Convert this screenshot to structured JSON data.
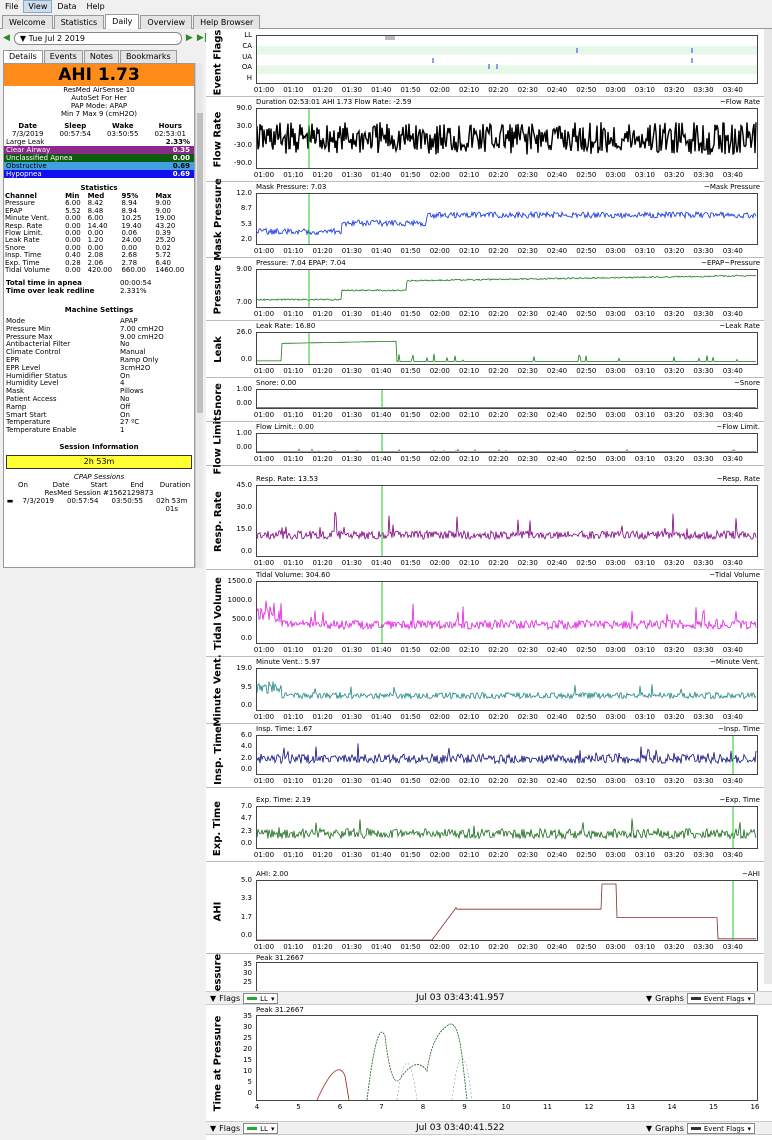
{
  "menu": [
    "File",
    "View",
    "Data",
    "Help"
  ],
  "tabs": [
    "Welcome",
    "Statistics",
    "Daily",
    "Overview",
    "Help Browser"
  ],
  "date": "Tue Jul 2 2019",
  "subtabs": [
    "Details",
    "Events",
    "Notes",
    "Bookmarks"
  ],
  "ahi": "AHI 1.73",
  "machine_lines": [
    "ResMed AirSense 10",
    "AutoSet For Her",
    "PAP Mode: APAP",
    "Min 7 Max 9 (cmH2O)"
  ],
  "sleep_header": [
    "Date",
    "Sleep",
    "Wake",
    "Hours"
  ],
  "sleep_values": [
    "7/3/2019",
    "00:57:54",
    "03:50:55",
    "02:53:01"
  ],
  "events": [
    {
      "name": "Large Leak",
      "value": "2.33%",
      "bg": "#ffffff",
      "fg": "#000"
    },
    {
      "name": "Clear Airway",
      "value": "0.35",
      "bg": "#8b2a8b",
      "fg": "#fff"
    },
    {
      "name": "Unclassified Apnea",
      "value": "0.00",
      "bg": "#0d5c0d",
      "fg": "#fff"
    },
    {
      "name": "Obstructive",
      "value": "0.69",
      "bg": "#40a0e0",
      "fg": "#000"
    },
    {
      "name": "Hypopnea",
      "value": "0.69",
      "bg": "#1010f0",
      "fg": "#fff"
    }
  ],
  "stats_title": "Statistics",
  "stats_header": [
    "Channel",
    "Min",
    "Med",
    "95%",
    "Max"
  ],
  "stats": [
    [
      "Pressure",
      "6.00",
      "8.42",
      "8.94",
      "9.00"
    ],
    [
      "EPAP",
      "5.52",
      "8.48",
      "8.94",
      "9.00"
    ],
    [
      "Minute Vent.",
      "0.00",
      "6.00",
      "10.25",
      "19.00"
    ],
    [
      "Resp. Rate",
      "0.00",
      "14.40",
      "19.40",
      "43.20"
    ],
    [
      "Flow Limit.",
      "0.00",
      "0.00",
      "0.06",
      "0.39"
    ],
    [
      "Leak Rate",
      "0.00",
      "1.20",
      "24.00",
      "25.20"
    ],
    [
      "Snore",
      "0.00",
      "0.00",
      "0.00",
      "0.02"
    ],
    [
      "Insp. Time",
      "0.40",
      "2.08",
      "2.68",
      "5.72"
    ],
    [
      "Exp. Time",
      "0.28",
      "2.06",
      "2.78",
      "6.40"
    ],
    [
      "Tidal Volume",
      "0.00",
      "420.00",
      "660.00",
      "1460.00"
    ]
  ],
  "totals": [
    [
      "Total time in apnea",
      "00:00:54"
    ],
    [
      "Time over leak redline",
      "2.331%"
    ]
  ],
  "machine_settings_title": "Machine Settings",
  "settings": [
    [
      "Mode",
      "APAP"
    ],
    [
      "Pressure Min",
      "7.00 cmH2O"
    ],
    [
      "Pressure Max",
      "9.00 cmH2O"
    ],
    [
      "Antibacterial Filter",
      "No"
    ],
    [
      "Climate Control",
      "Manual"
    ],
    [
      "EPR",
      "Ramp Only"
    ],
    [
      "EPR Level",
      "3cmH2O"
    ],
    [
      "Humidifier Status",
      "On"
    ],
    [
      "Humidity Level",
      "4"
    ],
    [
      "Mask",
      "Pillows"
    ],
    [
      "Patient Access",
      "No"
    ],
    [
      "Ramp",
      "Off"
    ],
    [
      "Smart Start",
      "On"
    ],
    [
      "Temperature",
      "27 ºC"
    ],
    [
      "Temperature Enable",
      "1"
    ]
  ],
  "session_title": "Session Information",
  "session_duration": "2h 53m",
  "cpap_sessions_label": "CPAP Sessions",
  "session_cols": [
    "On",
    "Date",
    "Start",
    "End",
    "Duration"
  ],
  "session_id": "ResMed Session #1562129873",
  "session_row": [
    "7/3/2019",
    "00:57:54",
    "03:50:55",
    "02h 53m 01s"
  ],
  "xticks": [
    "01:00",
    "01:10",
    "01:20",
    "01:30",
    "01:40",
    "01:50",
    "02:00",
    "02:10",
    "02:20",
    "02:30",
    "02:40",
    "02:50",
    "03:00",
    "03:10",
    "03:20",
    "03:30",
    "03:40"
  ],
  "graphs": [
    {
      "id": "flags",
      "label": "Event Flags",
      "header": "",
      "legend": "",
      "yticks": [
        "LL",
        "CA",
        "UA",
        "OA",
        "H"
      ]
    },
    {
      "id": "flow",
      "label": "Flow Rate",
      "header": "Duration 02:53:01 AHI 1.73 Flow Rate: -2.59",
      "legend": "~Flow Rate",
      "yticks": [
        "90.0",
        "30.0",
        "-30.0",
        "-90.0"
      ],
      "color": "#000000"
    },
    {
      "id": "mask",
      "label": "Mask Pressure",
      "header": "Mask Pressure: 7.03",
      "legend": "~Mask Pressure",
      "yticks": [
        "12.0",
        "8.7",
        "5.3",
        "2.0"
      ],
      "color": "#1030e0"
    },
    {
      "id": "pres",
      "label": "Pressure",
      "header": "Pressure: 7.04 EPAP: 7.04",
      "legend": "~EPAP~Pressure",
      "yticks": [
        "9.00",
        "7.00"
      ],
      "color": "#1a7a1a"
    },
    {
      "id": "leak",
      "label": "Leak",
      "header": "Leak Rate: 16.80",
      "legend": "~Leak Rate",
      "yticks": [
        "26.0",
        "0.0"
      ],
      "color": "#1a7a1a"
    },
    {
      "id": "snore",
      "label": "Snore",
      "header": "Snore: 0.00",
      "legend": "~Snore",
      "yticks": [
        "1.00",
        "0.00"
      ],
      "color": "#555555"
    },
    {
      "id": "flim",
      "label": "Flow Limit.",
      "header": "Flow Limit.: 0.00",
      "legend": "~Flow Limit.",
      "yticks": [
        "1.00",
        "0.00"
      ],
      "color": "#777777"
    },
    {
      "id": "resp",
      "label": "Resp. Rate",
      "header": "Resp. Rate: 13.53",
      "legend": "~Resp. Rate",
      "yticks": [
        "45.0",
        "30.0",
        "15.0",
        "0.0"
      ],
      "color": "#800080"
    },
    {
      "id": "tidal",
      "label": "Tidal Volume",
      "header": "Tidal Volume: 304.60",
      "legend": "~Tidal Volume",
      "yticks": [
        "1500.0",
        "1000.0",
        "500.0",
        "0.0"
      ],
      "color": "#e020e0"
    },
    {
      "id": "minv",
      "label": "Minute Vent.",
      "header": "Minute Vent.: 5.97",
      "legend": "~Minute Vent.",
      "yticks": [
        "19.0",
        "9.5",
        "0.0"
      ],
      "color": "#208888"
    },
    {
      "id": "insp",
      "label": "Insp. Time",
      "header": "Insp. Time: 1.67",
      "legend": "~Insp. Time",
      "yticks": [
        "6.0",
        "4.0",
        "2.0",
        "0.0"
      ],
      "color": "#101080"
    },
    {
      "id": "exp",
      "label": "Exp. Time",
      "header": "Exp. Time: 2.19",
      "legend": "~Exp. Time",
      "yticks": [
        "7.0",
        "4.7",
        "2.3",
        "0.0"
      ],
      "color": "#1a6a1a"
    },
    {
      "id": "ahig",
      "label": "AHI",
      "header": "AHI: 2.00",
      "legend": "~AHI",
      "yticks": [
        "5.0",
        "3.3",
        "1.7",
        "0.0"
      ],
      "color": "#8b2a2a"
    }
  ],
  "pressure_top": {
    "label": "essure",
    "header": "Peak 31.2667",
    "yticks": [
      "35",
      "30",
      "25"
    ]
  },
  "bottom1": {
    "flags": "Flags",
    "ll": "LL",
    "datetime": "Jul 03 03:43:41.957",
    "graphs": "Graphs",
    "sel": "Event Flags"
  },
  "time_at_pressure": {
    "label": "Time at Pressure",
    "header": "Peak 31.2667",
    "yticks": [
      "35",
      "30",
      "25",
      "20",
      "15",
      "10",
      "5",
      "0"
    ],
    "xticks": [
      "4",
      "5",
      "6",
      "7",
      "8",
      "9",
      "10",
      "11",
      "12",
      "13",
      "14",
      "15",
      "16"
    ]
  },
  "bottom2": {
    "flags": "Flags",
    "ll": "LL",
    "datetime": "Jul 03 03:40:41.522",
    "graphs": "Graphs",
    "sel": "Event Flags"
  }
}
